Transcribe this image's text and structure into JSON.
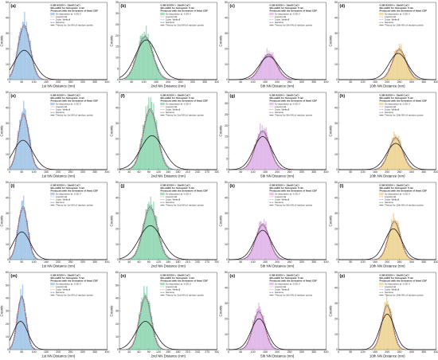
{
  "legend": {
    "condition": "0.5M H2SO4 + 10mM CuCl",
    "bin_prefix": "Bin-width for histogram:",
    "produced": "Produced with the derivative of fitted CDF",
    "deposition": "Sv deposition at -0.35 V",
    "lognormal": "Lognormal",
    "weibull": "2-par. Weibull",
    "gamma": "Gamma",
    "theory_1st": "Theory for 1st NN of random points",
    "theory_2nd": "Theory for 2nd NN of random points",
    "theory_5th": "Theory for 5th NN of random points",
    "theory_10th": "Theory for 10th NN of random points"
  },
  "colors": {
    "col1": "#5b9bd5",
    "col2": "#3cb878",
    "col3": "#c77dd6",
    "col4": "#e0b441",
    "lognormal": "#d9534f",
    "weibull": "#6a5acd",
    "gamma": "#555555",
    "theory": "#111111"
  },
  "chart_data": [
    {
      "label": "(a)",
      "type": "bar",
      "xlabel": "1st NN Distance (nm)",
      "ylabel": "Counts",
      "xlim": [
        0,
        400
      ],
      "xticks": [
        0,
        50,
        100,
        150,
        200,
        250,
        300,
        350,
        400
      ],
      "ylim": [
        0,
        50
      ],
      "yticks": [
        0,
        10,
        20,
        30,
        40,
        50
      ],
      "bin_width": "4 nm",
      "hist": {
        "x0": 0,
        "x1": 150,
        "peak_x": 60,
        "sigma": 25,
        "peak_y": 34
      },
      "theory": {
        "peak_x": 60,
        "sigma": 40,
        "peak_y": 19
      }
    },
    {
      "label": "(b)",
      "type": "bar",
      "xlabel": "2nd NN Distance (nm)",
      "ylabel": "Counts",
      "xlim": [
        0,
        400
      ],
      "xticks": [
        0,
        50,
        100,
        150,
        200,
        250,
        300,
        350,
        400
      ],
      "ylim": [
        0,
        35
      ],
      "yticks": [
        0,
        5,
        10,
        15,
        20,
        25,
        30,
        35
      ],
      "bin_width": "5 nm",
      "hist": {
        "x0": 20,
        "x1": 210,
        "peak_x": 105,
        "sigma": 32,
        "peak_y": 19
      },
      "theory": {
        "peak_x": 110,
        "sigma": 45,
        "peak_y": 18
      }
    },
    {
      "label": "(c)",
      "type": "bar",
      "xlabel": "5th NN Distance (nm)",
      "ylabel": "Counts",
      "xlim": [
        0,
        400
      ],
      "xticks": [
        0,
        50,
        100,
        150,
        200,
        250,
        300,
        350,
        400
      ],
      "ylim": [
        0,
        50
      ],
      "yticks": [
        0,
        10,
        20,
        30,
        40,
        50
      ],
      "bin_width": "5 nm",
      "hist": {
        "x0": 80,
        "x1": 260,
        "peak_x": 165,
        "sigma": 32,
        "peak_y": 16
      },
      "theory": {
        "peak_x": 165,
        "sigma": 40,
        "peak_y": 15
      }
    },
    {
      "label": "(d)",
      "type": "bar",
      "xlabel": "10th NN Distance (nm)",
      "ylabel": "Counts",
      "xlim": [
        0,
        400
      ],
      "xticks": [
        0,
        50,
        100,
        150,
        200,
        250,
        300,
        350,
        400
      ],
      "ylim": [
        0,
        50
      ],
      "yticks": [
        0,
        10,
        20,
        30,
        40,
        50
      ],
      "bin_width": "5 nm",
      "hist": {
        "x0": 160,
        "x1": 340,
        "peak_x": 250,
        "sigma": 28,
        "peak_y": 19
      },
      "theory": {
        "peak_x": 245,
        "sigma": 38,
        "peak_y": 17
      }
    },
    {
      "label": "(e)",
      "type": "bar",
      "xlabel": "1st NN Distance (nm)",
      "ylabel": "Counts",
      "xlim": [
        0,
        400
      ],
      "xticks": [
        0,
        50,
        100,
        150,
        200,
        250,
        300,
        350,
        400
      ],
      "ylim": [
        0,
        50
      ],
      "yticks": [
        0,
        10,
        20,
        30,
        40,
        50
      ],
      "bin_width": "4 nm",
      "hist": {
        "x0": 0,
        "x1": 150,
        "peak_x": 58,
        "sigma": 22,
        "peak_y": 35
      },
      "theory": {
        "peak_x": 55,
        "sigma": 40,
        "peak_y": 19
      }
    },
    {
      "label": "(f)",
      "type": "bar",
      "xlabel": "2nd NN Distance (nm)",
      "ylabel": "Counts",
      "xlim": [
        0,
        300
      ],
      "xticks": [
        0,
        30,
        60,
        90,
        120,
        150,
        180,
        210,
        240,
        270,
        300
      ],
      "ylim": [
        0,
        50
      ],
      "yticks": [
        0,
        10,
        20,
        30,
        40,
        50
      ],
      "bin_width": "5 nm",
      "hist": {
        "x0": 20,
        "x1": 200,
        "peak_x": 95,
        "sigma": 22,
        "peak_y": 38
      },
      "theory": {
        "peak_x": 100,
        "sigma": 35,
        "peak_y": 22
      }
    },
    {
      "label": "(g)",
      "type": "bar",
      "xlabel": "5th NN Distance (nm)",
      "ylabel": "Counts",
      "xlim": [
        0,
        400
      ],
      "xticks": [
        0,
        50,
        100,
        150,
        200,
        250,
        300,
        350,
        400
      ],
      "ylim": [
        0,
        35
      ],
      "yticks": [
        0,
        5,
        10,
        15,
        20,
        25,
        30,
        35
      ],
      "bin_width": "5 nm",
      "hist": {
        "x0": 60,
        "x1": 250,
        "peak_x": 140,
        "sigma": 30,
        "peak_y": 17
      },
      "theory": {
        "peak_x": 140,
        "sigma": 38,
        "peak_y": 15
      }
    },
    {
      "label": "(h)",
      "type": "bar",
      "xlabel": "10th NN Distance (nm)",
      "ylabel": "Counts",
      "xlim": [
        0,
        400
      ],
      "xticks": [
        0,
        50,
        100,
        150,
        200,
        250,
        300,
        350,
        400
      ],
      "ylim": [
        0,
        50
      ],
      "yticks": [
        0,
        10,
        20,
        30,
        40,
        50
      ],
      "bin_width": "5 nm",
      "hist": {
        "x0": 150,
        "x1": 320,
        "peak_x": 235,
        "sigma": 28,
        "peak_y": 20
      },
      "theory": {
        "peak_x": 235,
        "sigma": 38,
        "peak_y": 17
      }
    },
    {
      "label": "(i)",
      "type": "bar",
      "xlabel": "1st NN Distance (nm)",
      "ylabel": "Counts",
      "xlim": [
        0,
        400
      ],
      "xticks": [
        0,
        50,
        100,
        150,
        200,
        250,
        300,
        350,
        400
      ],
      "ylim": [
        0,
        50
      ],
      "yticks": [
        0,
        10,
        20,
        30,
        40,
        50
      ],
      "bin_width": "4 nm",
      "hist": {
        "x0": 0,
        "x1": 140,
        "peak_x": 55,
        "sigma": 20,
        "peak_y": 33
      },
      "theory": {
        "peak_x": 50,
        "sigma": 35,
        "peak_y": 18
      }
    },
    {
      "label": "(j)",
      "type": "bar",
      "xlabel": "2nd NN Distance (nm)",
      "ylabel": "Counts",
      "xlim": [
        0,
        300
      ],
      "xticks": [
        0,
        30,
        60,
        90,
        120,
        150,
        180,
        210,
        240,
        270,
        300
      ],
      "ylim": [
        0,
        50
      ],
      "yticks": [
        0,
        10,
        20,
        30,
        40,
        50
      ],
      "bin_width": "5 nm",
      "hist": {
        "x0": 20,
        "x1": 190,
        "peak_x": 95,
        "sigma": 22,
        "peak_y": 33
      },
      "theory": {
        "peak_x": 95,
        "sigma": 35,
        "peak_y": 22
      }
    },
    {
      "label": "(k)",
      "type": "bar",
      "xlabel": "5th NN Distance (nm)",
      "ylabel": "Counts",
      "xlim": [
        0,
        400
      ],
      "xticks": [
        0,
        50,
        100,
        150,
        200,
        250,
        300,
        350,
        400
      ],
      "ylim": [
        0,
        50
      ],
      "yticks": [
        0,
        10,
        20,
        30,
        40,
        50
      ],
      "bin_width": "5 nm",
      "hist": {
        "x0": 60,
        "x1": 240,
        "peak_x": 140,
        "sigma": 28,
        "peak_y": 22
      },
      "theory": {
        "peak_x": 140,
        "sigma": 36,
        "peak_y": 19
      }
    },
    {
      "label": "(l)",
      "type": "bar",
      "xlabel": "10th NN Distance (nm)",
      "ylabel": "Counts",
      "xlim": [
        0,
        400
      ],
      "xticks": [
        0,
        50,
        100,
        150,
        200,
        250,
        300,
        350,
        400
      ],
      "ylim": [
        0,
        50
      ],
      "yticks": [
        0,
        10,
        20,
        30,
        40,
        50
      ],
      "bin_width": "5 nm",
      "hist": {
        "x0": 140,
        "x1": 310,
        "peak_x": 230,
        "sigma": 25,
        "peak_y": 24
      },
      "theory": {
        "peak_x": 225,
        "sigma": 35,
        "peak_y": 20
      }
    },
    {
      "label": "(m)",
      "type": "bar",
      "xlabel": "1st NN Distance (nm)",
      "ylabel": "Counts",
      "xlim": [
        0,
        400
      ],
      "xticks": [
        0,
        50,
        100,
        150,
        200,
        250,
        300,
        350,
        400
      ],
      "ylim": [
        0,
        60
      ],
      "yticks": [
        0,
        10,
        20,
        30,
        40,
        50,
        60
      ],
      "bin_width": "4 nm",
      "hist": {
        "x0": 0,
        "x1": 130,
        "peak_x": 50,
        "sigma": 18,
        "peak_y": 40
      },
      "theory": {
        "peak_x": 45,
        "sigma": 30,
        "peak_y": 22
      }
    },
    {
      "label": "(n)",
      "type": "bar",
      "xlabel": "2nd NN Distance (nm)",
      "ylabel": "Counts",
      "xlim": [
        0,
        300
      ],
      "xticks": [
        0,
        30,
        60,
        90,
        120,
        150,
        180,
        210,
        240,
        270,
        300
      ],
      "ylim": [
        0,
        60
      ],
      "yticks": [
        0,
        10,
        20,
        30,
        40,
        50,
        60
      ],
      "bin_width": "4 nm",
      "hist": {
        "x0": 20,
        "x1": 170,
        "peak_x": 80,
        "sigma": 18,
        "peak_y": 40
      },
      "theory": {
        "peak_x": 80,
        "sigma": 30,
        "peak_y": 22
      }
    },
    {
      "label": "(o)",
      "type": "bar",
      "xlabel": "5th NN Distance (nm)",
      "ylabel": "Counts",
      "xlim": [
        0,
        400
      ],
      "xticks": [
        0,
        50,
        100,
        150,
        200,
        250,
        300,
        350,
        400
      ],
      "ylim": [
        0,
        50
      ],
      "yticks": [
        0,
        10,
        20,
        30,
        40,
        50
      ],
      "bin_width": "5 nm",
      "hist": {
        "x0": 50,
        "x1": 220,
        "peak_x": 125,
        "sigma": 25,
        "peak_y": 24
      },
      "theory": {
        "peak_x": 125,
        "sigma": 33,
        "peak_y": 20
      }
    },
    {
      "label": "(p)",
      "type": "bar",
      "xlabel": "10th NN Distance (nm)",
      "ylabel": "Counts",
      "xlim": [
        0,
        400
      ],
      "xticks": [
        0,
        50,
        100,
        150,
        200,
        250,
        300,
        350,
        400
      ],
      "ylim": [
        0,
        50
      ],
      "yticks": [
        0,
        10,
        20,
        30,
        40,
        50
      ],
      "bin_width": "5 nm",
      "hist": {
        "x0": 120,
        "x1": 280,
        "peak_x": 200,
        "sigma": 22,
        "peak_y": 28
      },
      "theory": {
        "peak_x": 200,
        "sigma": 30,
        "peak_y": 23
      }
    }
  ]
}
